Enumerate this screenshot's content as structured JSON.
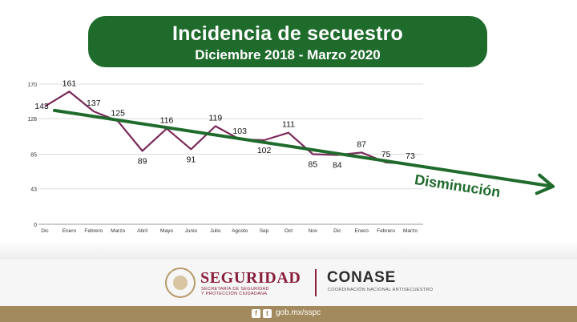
{
  "header": {
    "title": "Incidencia de secuestro",
    "subtitle": "Diciembre 2018 - Marzo 2020",
    "bg_color": "#1f6b2c"
  },
  "chart_data": {
    "type": "line",
    "title": "Incidencia de secuestro",
    "subtitle": "Diciembre 2018 - Marzo 2020",
    "xlabel": "",
    "ylabel": "",
    "categories": [
      "Dic",
      "Enero",
      "Febrero",
      "Marzo",
      "Abril",
      "Mayo",
      "Junio",
      "Julio",
      "Agosto",
      "Sep",
      "Oct",
      "Nov",
      "Dic",
      "Enero",
      "Febrero",
      "Marzo"
    ],
    "series": [
      {
        "values": [
          143,
          161,
          137,
          125,
          89,
          116,
          91,
          119,
          103,
          102,
          111,
          85,
          84,
          87,
          75,
          73
        ],
        "color": "#7a2a5a"
      }
    ],
    "ylim": [
      0,
      170
    ],
    "yticks": [
      0,
      43,
      85,
      128,
      170
    ],
    "grid": true,
    "trend": {
      "label": "Disminución",
      "start_value": 140,
      "end_value": 42,
      "color": "#1f6b2c"
    }
  },
  "footer": {
    "org_name": "SEGURIDAD",
    "org_subtitle_1": "SECRETARÍA DE SEGURIDAD",
    "org_subtitle_2": "Y PROTECCIÓN CIUDADANA",
    "conase_name": "CONASE",
    "conase_subtitle": "COORDINACIÓN NACIONAL ANTISECUESTRO",
    "url": "gob.mx/sspc",
    "social_icons": [
      "facebook-icon",
      "twitter-icon"
    ],
    "bar_color": "#a38a5e"
  }
}
